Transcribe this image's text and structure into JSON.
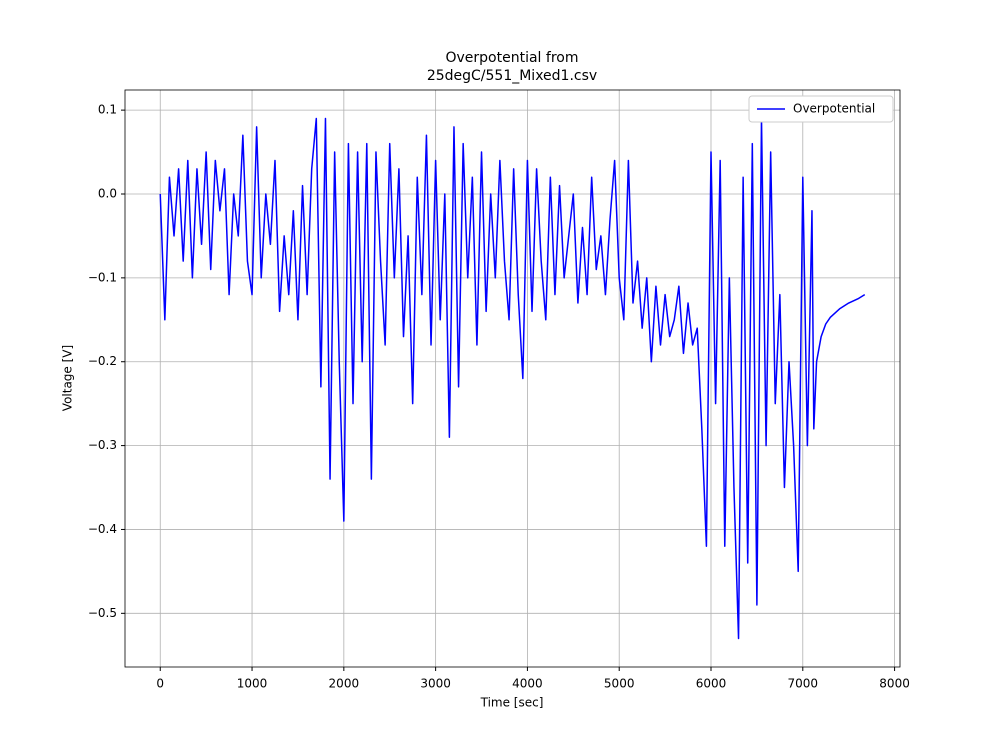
{
  "chart_data": {
    "type": "line",
    "title": [
      "Overpotential from",
      "25degC/551_Mixed1.csv"
    ],
    "xlabel": "Time [sec]",
    "ylabel": "Voltage [V]",
    "x": [
      0,
      50,
      100,
      150,
      200,
      250,
      300,
      350,
      400,
      450,
      500,
      550,
      600,
      650,
      700,
      750,
      800,
      850,
      900,
      950,
      1000,
      1050,
      1100,
      1150,
      1200,
      1250,
      1300,
      1350,
      1400,
      1450,
      1500,
      1550,
      1600,
      1650,
      1700,
      1750,
      1800,
      1850,
      1900,
      1950,
      2000,
      2050,
      2100,
      2150,
      2200,
      2250,
      2300,
      2350,
      2400,
      2450,
      2500,
      2550,
      2600,
      2650,
      2700,
      2750,
      2800,
      2850,
      2900,
      2950,
      3000,
      3050,
      3100,
      3150,
      3200,
      3250,
      3300,
      3350,
      3400,
      3450,
      3500,
      3550,
      3600,
      3650,
      3700,
      3750,
      3800,
      3850,
      3900,
      3950,
      4000,
      4050,
      4100,
      4150,
      4200,
      4250,
      4300,
      4350,
      4400,
      4450,
      4500,
      4550,
      4600,
      4650,
      4700,
      4750,
      4800,
      4850,
      4900,
      4950,
      5000,
      5050,
      5100,
      5150,
      5200,
      5250,
      5300,
      5350,
      5400,
      5450,
      5500,
      5550,
      5600,
      5650,
      5700,
      5750,
      5800,
      5850,
      5900,
      5950,
      6000,
      6050,
      6100,
      6150,
      6200,
      6250,
      6300,
      6350,
      6400,
      6450,
      6500,
      6550,
      6600,
      6650,
      6700,
      6750,
      6800,
      6850,
      6900,
      6950,
      7000,
      7050,
      7100,
      7120,
      7150,
      7200,
      7250,
      7300,
      7400,
      7500,
      7600,
      7675
    ],
    "series": [
      {
        "name": "Overpotential",
        "color": "#0000ff",
        "values": [
          0.0,
          -0.15,
          0.02,
          -0.05,
          0.03,
          -0.08,
          0.04,
          -0.1,
          0.03,
          -0.06,
          0.05,
          -0.09,
          0.04,
          -0.02,
          0.03,
          -0.12,
          0.0,
          -0.05,
          0.07,
          -0.08,
          -0.12,
          0.08,
          -0.1,
          0.0,
          -0.06,
          0.04,
          -0.14,
          -0.05,
          -0.12,
          -0.02,
          -0.15,
          0.01,
          -0.12,
          0.03,
          0.09,
          -0.23,
          0.09,
          -0.34,
          0.05,
          -0.2,
          -0.39,
          0.06,
          -0.25,
          0.05,
          -0.2,
          0.06,
          -0.34,
          0.05,
          -0.08,
          -0.18,
          0.06,
          -0.1,
          0.03,
          -0.17,
          -0.05,
          -0.25,
          0.02,
          -0.12,
          0.07,
          -0.18,
          0.04,
          -0.15,
          0.0,
          -0.29,
          0.08,
          -0.23,
          0.06,
          -0.1,
          0.02,
          -0.18,
          0.05,
          -0.14,
          0.0,
          -0.1,
          0.04,
          -0.08,
          -0.15,
          0.03,
          -0.12,
          -0.22,
          0.04,
          -0.14,
          0.03,
          -0.08,
          -0.15,
          0.02,
          -0.12,
          0.01,
          -0.1,
          -0.05,
          0.0,
          -0.13,
          -0.04,
          -0.12,
          0.02,
          -0.09,
          -0.05,
          -0.12,
          -0.03,
          0.04,
          -0.1,
          -0.15,
          0.04,
          -0.13,
          -0.08,
          -0.16,
          -0.1,
          -0.2,
          -0.11,
          -0.18,
          -0.12,
          -0.17,
          -0.15,
          -0.11,
          -0.19,
          -0.13,
          -0.18,
          -0.16,
          -0.28,
          -0.42,
          0.05,
          -0.25,
          0.04,
          -0.42,
          -0.1,
          -0.35,
          -0.53,
          0.02,
          -0.44,
          0.06,
          -0.49,
          0.09,
          -0.3,
          0.05,
          -0.25,
          -0.12,
          -0.35,
          -0.2,
          -0.3,
          -0.45,
          0.02,
          -0.3,
          -0.02,
          -0.28,
          -0.2,
          -0.17,
          -0.155,
          -0.147,
          -0.137,
          -0.13,
          -0.125,
          -0.12
        ]
      }
    ],
    "xlim": [
      -384,
      8059
    ],
    "ylim": [
      -0.564,
      0.124
    ],
    "xticks": [
      0,
      1000,
      2000,
      3000,
      4000,
      5000,
      6000,
      7000,
      8000
    ],
    "yticks": [
      0.1,
      {
        "value": 0,
        "label": "0.0"
      },
      {
        "value": -0.1,
        "label": "−0.1"
      },
      {
        "value": -0.2,
        "label": "−0.2"
      },
      {
        "value": -0.3,
        "label": "−0.3"
      },
      {
        "value": -0.4,
        "label": "−0.4"
      },
      {
        "value": -0.5,
        "label": "−0.5"
      }
    ],
    "grid": true,
    "legend": "upper right"
  }
}
